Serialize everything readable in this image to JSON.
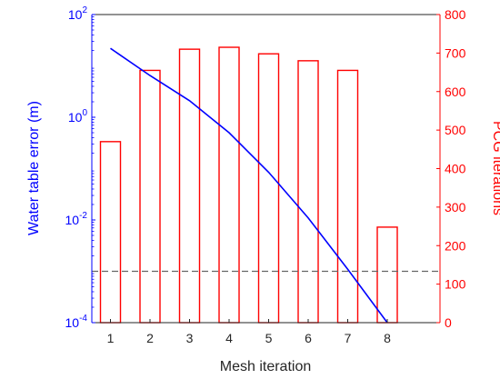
{
  "chart_data": {
    "type": "bar+line (dual y-axis)",
    "categories": [
      1,
      2,
      3,
      4,
      5,
      6,
      7,
      8
    ],
    "xlabel": "Mesh iteration",
    "left_axis": {
      "label": "Water table error (m)",
      "scale": "log",
      "ylim": [
        0.0001,
        100
      ],
      "ticks": [
        {
          "value": 100,
          "base": "10",
          "exp": "2"
        },
        {
          "value": 1,
          "base": "10",
          "exp": "0"
        },
        {
          "value": 0.01,
          "base": "10",
          "exp": "-2"
        },
        {
          "value": 0.0001,
          "base": "10",
          "exp": "-4"
        }
      ],
      "color": "#0000ff"
    },
    "right_axis": {
      "label": "PCG iterations",
      "scale": "linear",
      "ylim": [
        0,
        800
      ],
      "ticks": [
        0,
        100,
        200,
        300,
        400,
        500,
        600,
        700,
        800
      ],
      "color": "#ff0000"
    },
    "series": [
      {
        "name": "PCG iterations",
        "kind": "bar",
        "axis": "right",
        "color": "#ff0000",
        "values": [
          470,
          655,
          710,
          715,
          698,
          680,
          655,
          248
        ]
      },
      {
        "name": "Water table error",
        "kind": "line",
        "axis": "left",
        "color": "#0000ff",
        "x": [
          1,
          2,
          3,
          4,
          5,
          6,
          7,
          8
        ],
        "y": [
          22,
          6.5,
          2.1,
          0.5,
          0.085,
          0.011,
          0.0011,
          0.0001
        ]
      }
    ],
    "reference_line": {
      "axis": "left",
      "value": 0.001,
      "style": "dashed",
      "color": "#555555"
    },
    "grid": false,
    "legend": "none"
  }
}
